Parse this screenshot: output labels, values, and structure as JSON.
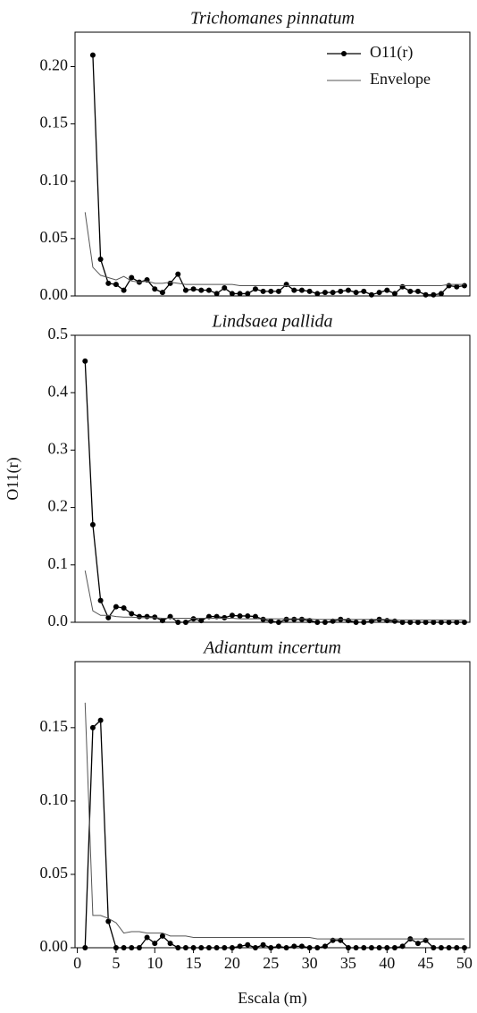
{
  "chart_data": [
    {
      "type": "line",
      "title": "Trichomanes pinnatum",
      "legend": "upper right",
      "x": [
        1,
        2,
        3,
        4,
        5,
        6,
        7,
        8,
        9,
        10,
        11,
        12,
        13,
        14,
        15,
        16,
        17,
        18,
        19,
        20,
        21,
        22,
        23,
        24,
        25,
        26,
        27,
        28,
        29,
        30,
        31,
        32,
        33,
        34,
        35,
        36,
        37,
        38,
        39,
        40,
        41,
        42,
        43,
        44,
        45,
        46,
        47,
        48,
        49,
        50
      ],
      "xlim": [
        -0.3,
        50.7
      ],
      "ylim": [
        0,
        0.23
      ],
      "yticks": [
        {
          "value": 0,
          "label": "0.00"
        },
        {
          "value": 0.05,
          "label": "0.05"
        },
        {
          "value": 0.1,
          "label": "0.10"
        },
        {
          "value": 0.15,
          "label": "0.15"
        },
        {
          "value": 0.2,
          "label": "0.20"
        }
      ],
      "series": [
        {
          "name": "O11(r)",
          "color": "#000000",
          "marker": "circle",
          "values": [
            null,
            0.21,
            0.032,
            0.011,
            0.01,
            0.005,
            0.016,
            0.012,
            0.014,
            0.006,
            0.003,
            0.011,
            0.019,
            0.005,
            0.006,
            0.005,
            0.005,
            0.002,
            0.007,
            0.002,
            0.002,
            0.002,
            0.006,
            0.004,
            0.004,
            0.004,
            0.01,
            0.005,
            0.005,
            0.004,
            0.002,
            0.003,
            0.003,
            0.004,
            0.005,
            0.003,
            0.004,
            0.001,
            0.003,
            0.005,
            0.002,
            0.008,
            0.004,
            0.004,
            0.001,
            0.001,
            0.002,
            0.009,
            0.008,
            0.009
          ]
        },
        {
          "name": "Envelope",
          "color": "#555555",
          "values": [
            0.073,
            0.025,
            0.018,
            0.016,
            0.014,
            0.017,
            0.013,
            0.012,
            0.013,
            0.011,
            0.011,
            0.012,
            0.011,
            0.01,
            0.01,
            0.01,
            0.01,
            0.01,
            0.01,
            0.01,
            0.009,
            0.009,
            0.009,
            0.009,
            0.009,
            0.009,
            0.009,
            0.009,
            0.009,
            0.009,
            0.009,
            0.009,
            0.009,
            0.009,
            0.009,
            0.009,
            0.009,
            0.009,
            0.009,
            0.009,
            0.009,
            0.009,
            0.009,
            0.009,
            0.009,
            0.009,
            0.009,
            0.01,
            0.01,
            0.01
          ]
        }
      ]
    },
    {
      "type": "line",
      "title": "Lindsaea pallida",
      "ylabel": "O11(r)",
      "x": [
        1,
        2,
        3,
        4,
        5,
        6,
        7,
        8,
        9,
        10,
        11,
        12,
        13,
        14,
        15,
        16,
        17,
        18,
        19,
        20,
        21,
        22,
        23,
        24,
        25,
        26,
        27,
        28,
        29,
        30,
        31,
        32,
        33,
        34,
        35,
        36,
        37,
        38,
        39,
        40,
        41,
        42,
        43,
        44,
        45,
        46,
        47,
        48,
        49,
        50
      ],
      "xlim": [
        -0.3,
        50.7
      ],
      "ylim": [
        0,
        0.5
      ],
      "yticks": [
        {
          "value": 0,
          "label": "0.0"
        },
        {
          "value": 0.1,
          "label": "0.1"
        },
        {
          "value": 0.2,
          "label": "0.2"
        },
        {
          "value": 0.3,
          "label": "0.3"
        },
        {
          "value": 0.4,
          "label": "0.4"
        },
        {
          "value": 0.5,
          "label": "0.5"
        }
      ],
      "series": [
        {
          "name": "O11(r)",
          "color": "#000000",
          "marker": "circle",
          "values": [
            0.455,
            0.17,
            0.038,
            0.008,
            0.027,
            0.025,
            0.015,
            0.01,
            0.01,
            0.009,
            0.003,
            0.01,
            0,
            0,
            0.006,
            0.003,
            0.01,
            0.01,
            0.008,
            0.012,
            0.011,
            0.011,
            0.01,
            0.005,
            0.002,
            0,
            0.005,
            0.005,
            0.005,
            0.003,
            0,
            0,
            0.002,
            0.005,
            0.003,
            0,
            0,
            0.002,
            0.005,
            0.003,
            0.002,
            0,
            0,
            0,
            0,
            0,
            0,
            0,
            0,
            0
          ]
        },
        {
          "name": "Envelope",
          "color": "#555555",
          "values": [
            0.09,
            0.02,
            0.012,
            0.012,
            0.01,
            0.009,
            0.009,
            0.008,
            0.008,
            0.008,
            0.007,
            0.007,
            0.007,
            0.007,
            0.007,
            0.007,
            0.007,
            0.007,
            0.007,
            0.007,
            0.006,
            0.006,
            0.006,
            0.006,
            0.006,
            0.006,
            0.006,
            0.006,
            0.006,
            0.006,
            0.005,
            0.005,
            0.005,
            0.005,
            0.005,
            0.005,
            0.005,
            0.005,
            0.005,
            0.005,
            0.004,
            0.004,
            0.004,
            0.004,
            0.004,
            0.004,
            0.004,
            0.004,
            0.004,
            0.004
          ]
        }
      ]
    },
    {
      "type": "line",
      "title": "Adiantum incertum",
      "xlabel": "Escala (m)",
      "x": [
        1,
        2,
        3,
        4,
        5,
        6,
        7,
        8,
        9,
        10,
        11,
        12,
        13,
        14,
        15,
        16,
        17,
        18,
        19,
        20,
        21,
        22,
        23,
        24,
        25,
        26,
        27,
        28,
        29,
        30,
        31,
        32,
        33,
        34,
        35,
        36,
        37,
        38,
        39,
        40,
        41,
        42,
        43,
        44,
        45,
        46,
        47,
        48,
        49,
        50
      ],
      "xlim": [
        -0.3,
        50.7
      ],
      "ylim": [
        0,
        0.195
      ],
      "xticks": [
        0,
        5,
        10,
        15,
        20,
        25,
        30,
        35,
        40,
        45,
        50
      ],
      "yticks": [
        {
          "value": 0,
          "label": "0.00"
        },
        {
          "value": 0.05,
          "label": "0.05"
        },
        {
          "value": 0.1,
          "label": "0.10"
        },
        {
          "value": 0.15,
          "label": "0.15"
        }
      ],
      "series": [
        {
          "name": "O11(r)",
          "color": "#000000",
          "marker": "circle",
          "values": [
            0,
            0.15,
            0.155,
            0.018,
            0,
            0,
            0,
            0,
            0.007,
            0.003,
            0.008,
            0.003,
            0,
            0,
            0,
            0,
            0,
            0,
            0,
            0,
            0.001,
            0.002,
            0,
            0.002,
            0,
            0.001,
            0,
            0.001,
            0.001,
            0,
            0,
            0.001,
            0.005,
            0.005,
            0,
            0,
            0,
            0,
            0,
            0,
            0,
            0.001,
            0.006,
            0.003,
            0.005,
            0,
            0,
            0,
            0,
            0
          ]
        },
        {
          "name": "Envelope",
          "color": "#555555",
          "values": [
            0.167,
            0.022,
            0.022,
            0.02,
            0.017,
            0.01,
            0.011,
            0.011,
            0.01,
            0.01,
            0.01,
            0.008,
            0.008,
            0.008,
            0.007,
            0.007,
            0.007,
            0.007,
            0.007,
            0.007,
            0.007,
            0.007,
            0.007,
            0.007,
            0.007,
            0.007,
            0.007,
            0.007,
            0.007,
            0.007,
            0.006,
            0.006,
            0.006,
            0.006,
            0.006,
            0.006,
            0.006,
            0.006,
            0.006,
            0.006,
            0.006,
            0.006,
            0.006,
            0.006,
            0.006,
            0.006,
            0.006,
            0.006,
            0.006,
            0.006
          ]
        }
      ]
    }
  ]
}
